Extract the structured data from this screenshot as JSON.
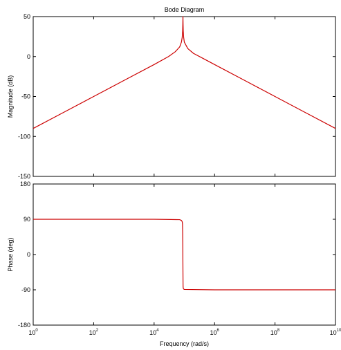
{
  "title": "Bode Diagram",
  "xlabel": "Frequency  (rad/s)",
  "colors": {
    "trace": "#cc0000",
    "axes": "#000000",
    "background": "#ffffff"
  },
  "chart_data": [
    {
      "type": "line",
      "panel": "magnitude",
      "title": "Bode Diagram",
      "ylabel": "Magnitude (dB)",
      "xscale": "log",
      "xlim": [
        1,
        10000000000
      ],
      "ylim": [
        -150,
        50
      ],
      "x_ticks": [
        1,
        100,
        10000,
        1000000,
        100000000,
        10000000000
      ],
      "y_ticks": [
        50,
        0,
        -50,
        -100,
        -150
      ],
      "y_tick_labels": [
        "50",
        "0",
        "-50",
        "-100",
        "-150"
      ],
      "grid": false,
      "series": [
        {
          "color": "#cc0000",
          "x": [
            1,
            10,
            100,
            1000,
            10000,
            30000,
            50000,
            70000,
            80000,
            85000,
            88000,
            89000,
            90000,
            91000,
            92000,
            95000,
            100000,
            130000,
            200000,
            400000,
            1000000,
            10000000,
            100000000,
            1000000000,
            10000000000
          ],
          "y": [
            -90,
            -70,
            -50,
            -30,
            -10,
            0,
            6,
            12,
            18,
            24,
            32,
            40,
            50,
            40,
            32,
            24,
            18,
            10,
            4,
            -2,
            -10,
            -30,
            -50,
            -70,
            -90
          ]
        }
      ]
    },
    {
      "type": "line",
      "panel": "phase",
      "ylabel": "Phase (deg)",
      "xlabel": "Frequency  (rad/s)",
      "xscale": "log",
      "xlim": [
        1,
        10000000000
      ],
      "ylim": [
        -180,
        180
      ],
      "x_ticks": [
        1,
        100,
        10000,
        1000000,
        100000000,
        10000000000
      ],
      "y_ticks": [
        180,
        90,
        0,
        -90,
        -180
      ],
      "y_tick_labels": [
        "180",
        "90",
        "0",
        "-90",
        "-180"
      ],
      "grid": false,
      "series": [
        {
          "color": "#cc0000",
          "x": [
            1,
            10000,
            70000,
            80000,
            85000,
            87000,
            88000,
            89000,
            90000,
            90500,
            91000,
            92000,
            95000,
            100000,
            1000000,
            100000000,
            10000000000
          ],
          "y": [
            90,
            90,
            89,
            87,
            84,
            78,
            60,
            20,
            -40,
            -70,
            -82,
            -86,
            -88,
            -89,
            -90,
            -90,
            -90
          ]
        }
      ]
    }
  ]
}
